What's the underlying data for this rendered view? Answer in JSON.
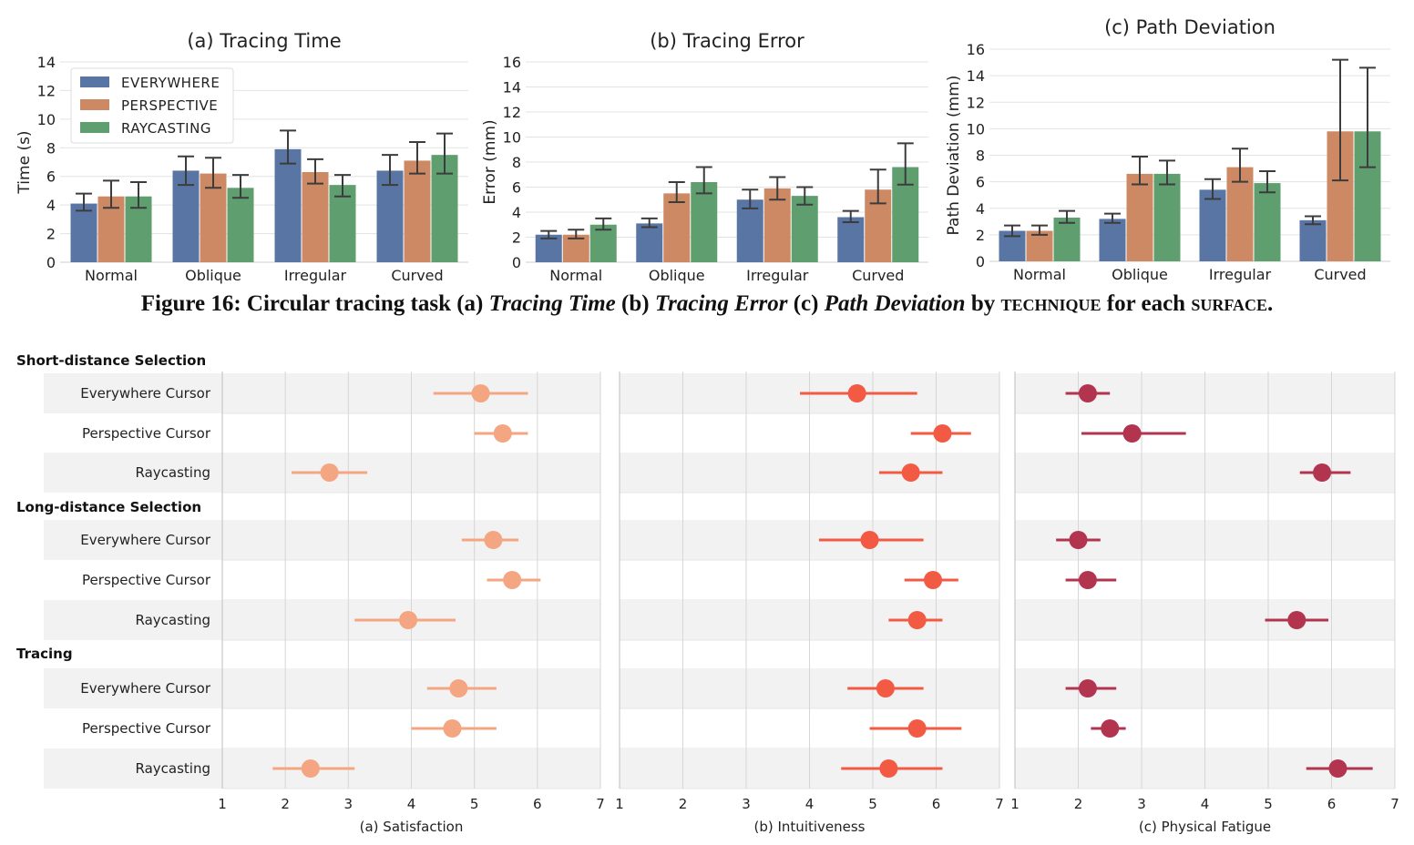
{
  "caption": {
    "p1": "Figure 16: Circular tracing task (a) ",
    "p2": "Tracing Time",
    "p3": " (b) ",
    "p4": "Tracing Error",
    "p5": " (c) ",
    "p6": "Path Deviation",
    "p7": " by ",
    "p8": "technique",
    "p9": " for each ",
    "p10": "surface",
    "p11": "."
  },
  "colors": {
    "everywhere": "#5875a4",
    "perspective": "#cc8963",
    "raycasting": "#5f9e6e",
    "satisfaction": "#f4a582",
    "intuitiveness": "#f25a44",
    "fatigue": "#b2344e"
  },
  "chart_data": [
    {
      "type": "bar",
      "title": "(a) Tracing Time",
      "ylabel": "Time (s)",
      "categories": [
        "Normal",
        "Oblique",
        "Irregular",
        "Curved"
      ],
      "ylim": [
        0,
        14
      ],
      "yticks": [
        0,
        2,
        4,
        6,
        8,
        10,
        12,
        14
      ],
      "legend": "top-left",
      "series": [
        {
          "name": "EVERYWHERE",
          "values": [
            4.1,
            6.4,
            7.9,
            6.4
          ],
          "err_low": [
            3.6,
            5.4,
            6.9,
            5.4
          ],
          "err_high": [
            4.8,
            7.4,
            9.2,
            7.5
          ]
        },
        {
          "name": "PERSPECTIVE",
          "values": [
            4.6,
            6.2,
            6.3,
            7.1
          ],
          "err_low": [
            3.8,
            5.2,
            5.5,
            6.2
          ],
          "err_high": [
            5.7,
            7.3,
            7.2,
            8.4
          ]
        },
        {
          "name": "RAYCASTING",
          "values": [
            4.6,
            5.2,
            5.4,
            7.5
          ],
          "err_low": [
            3.8,
            4.5,
            4.6,
            6.2
          ],
          "err_high": [
            5.6,
            6.1,
            6.1,
            9.0
          ]
        }
      ]
    },
    {
      "type": "bar",
      "title": "(b) Tracing Error",
      "ylabel": "Error (mm)",
      "categories": [
        "Normal",
        "Oblique",
        "Irregular",
        "Curved"
      ],
      "ylim": [
        0,
        16
      ],
      "yticks": [
        0,
        2,
        4,
        6,
        8,
        10,
        12,
        14,
        16
      ],
      "series": [
        {
          "values": [
            2.2,
            3.1,
            5.0,
            3.6
          ],
          "err_low": [
            1.9,
            2.8,
            4.3,
            3.2
          ],
          "err_high": [
            2.5,
            3.5,
            5.8,
            4.1
          ]
        },
        {
          "values": [
            2.2,
            5.5,
            5.9,
            5.8
          ],
          "err_low": [
            1.9,
            4.8,
            5.0,
            4.7
          ],
          "err_high": [
            2.6,
            6.4,
            6.8,
            7.4
          ]
        },
        {
          "values": [
            3.0,
            6.4,
            5.3,
            7.6
          ],
          "err_low": [
            2.6,
            5.5,
            4.6,
            6.2
          ],
          "err_high": [
            3.5,
            7.6,
            6.0,
            9.5
          ]
        }
      ]
    },
    {
      "type": "bar",
      "title": "(c) Path Deviation",
      "ylabel": "Path Deviation (mm)",
      "categories": [
        "Normal",
        "Oblique",
        "Irregular",
        "Curved"
      ],
      "ylim": [
        0,
        16
      ],
      "yticks": [
        0,
        2,
        4,
        6,
        8,
        10,
        12,
        14,
        16
      ],
      "series": [
        {
          "values": [
            2.3,
            3.2,
            5.4,
            3.1
          ],
          "err_low": [
            1.9,
            2.9,
            4.7,
            2.8
          ],
          "err_high": [
            2.7,
            3.6,
            6.2,
            3.4
          ]
        },
        {
          "values": [
            2.3,
            6.6,
            7.1,
            9.8
          ],
          "err_low": [
            2.0,
            5.8,
            6.0,
            6.1
          ],
          "err_high": [
            2.7,
            7.9,
            8.5,
            15.2
          ]
        },
        {
          "values": [
            3.3,
            6.6,
            5.9,
            9.8
          ],
          "err_low": [
            2.9,
            5.8,
            5.2,
            7.1
          ],
          "err_high": [
            3.8,
            7.6,
            6.8,
            14.6
          ]
        }
      ]
    },
    {
      "type": "scatter",
      "subtype": "dot-interval",
      "groups": [
        {
          "title": "Short-distance Selection",
          "rows": [
            "Everywhere Cursor",
            "Perspective Cursor",
            "Raycasting"
          ]
        },
        {
          "title": "Long-distance Selection",
          "rows": [
            "Everywhere Cursor",
            "Perspective Cursor",
            "Raycasting"
          ]
        },
        {
          "title": "Tracing",
          "rows": [
            "Everywhere Cursor",
            "Perspective Cursor",
            "Raycasting"
          ]
        }
      ],
      "xlim": [
        1,
        7
      ],
      "xticks": [
        1,
        2,
        3,
        4,
        5,
        6,
        7
      ],
      "panels": [
        {
          "xlabel": "(a) Satisfaction",
          "mean": [
            5.1,
            5.45,
            2.7,
            5.3,
            5.6,
            3.95,
            4.75,
            4.65,
            2.4
          ],
          "low": [
            4.35,
            5.0,
            2.1,
            4.8,
            5.2,
            3.1,
            4.25,
            4.0,
            1.8
          ],
          "high": [
            5.85,
            5.85,
            3.3,
            5.7,
            6.05,
            4.7,
            5.35,
            5.35,
            3.1
          ]
        },
        {
          "xlabel": "(b) Intuitiveness",
          "mean": [
            4.75,
            6.1,
            5.6,
            4.95,
            5.95,
            5.7,
            5.2,
            5.7,
            5.25
          ],
          "low": [
            3.85,
            5.6,
            5.1,
            4.15,
            5.5,
            5.25,
            4.6,
            4.95,
            4.5
          ],
          "high": [
            5.7,
            6.55,
            6.1,
            5.8,
            6.35,
            6.1,
            5.8,
            6.4,
            6.1
          ]
        },
        {
          "xlabel": "(c) Physical Fatigue",
          "mean": [
            2.15,
            2.85,
            5.85,
            2.0,
            2.15,
            5.45,
            2.15,
            2.5,
            6.1
          ],
          "low": [
            1.8,
            2.05,
            5.5,
            1.65,
            1.8,
            4.95,
            1.8,
            2.2,
            5.6
          ],
          "high": [
            2.5,
            3.7,
            6.3,
            2.35,
            2.6,
            5.95,
            2.6,
            2.75,
            6.65
          ]
        }
      ]
    }
  ]
}
